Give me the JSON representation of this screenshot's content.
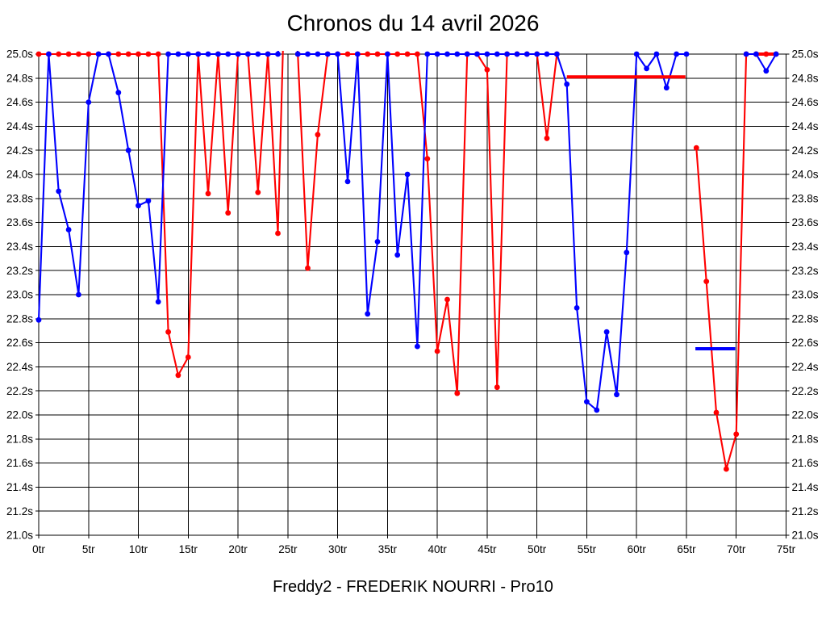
{
  "chart_data": {
    "type": "line",
    "title": "Chronos du 14 avril 2026",
    "subtitle": "Freddy2 - FREDERIK NOURRI - Pro10",
    "x_unit": "tr",
    "y_unit": "s",
    "xlim": [
      0,
      75
    ],
    "ylim": [
      21.0,
      25.0
    ],
    "y_step": 0.2,
    "x_tick_step": 5,
    "grid": true,
    "legend_position": "none",
    "clip_top": 25.0,
    "x_tick_labels": [
      "0tr",
      "5tr",
      "10tr",
      "15tr",
      "20tr",
      "25tr",
      "30tr",
      "35tr",
      "40tr",
      "45tr",
      "50tr",
      "55tr",
      "60tr",
      "65tr",
      "70tr",
      "75tr"
    ],
    "y_tick_labels": [
      "25.0s",
      "24.8s",
      "24.6s",
      "24.4s",
      "24.2s",
      "24.0s",
      "23.8s",
      "23.6s",
      "23.4s",
      "23.2s",
      "23.0s",
      "22.8s",
      "22.6s",
      "22.4s",
      "22.2s",
      "22.0s",
      "21.8s",
      "21.6s",
      "21.4s",
      "21.2s",
      "21.0s"
    ],
    "series": [
      {
        "name": "chrono-rouge",
        "color": "#ff0000",
        "values": [
          25,
          25,
          25,
          25,
          25,
          25,
          25,
          25,
          25,
          25,
          25,
          25,
          25,
          22.69,
          22.33,
          22.48,
          25,
          23.84,
          25,
          23.68,
          25,
          25,
          23.85,
          25,
          23.51,
          26.5,
          25,
          23.22,
          24.33,
          25,
          25,
          25,
          25,
          25,
          25,
          25,
          25,
          25,
          25,
          24.13,
          22.53,
          22.96,
          22.18,
          25,
          25,
          24.87,
          22.23,
          25,
          25,
          25,
          25,
          24.3,
          25,
          null,
          null,
          null,
          null,
          null,
          null,
          null,
          null,
          null,
          null,
          null,
          null,
          null,
          24.22,
          23.11,
          22.02,
          21.55,
          21.84,
          25,
          25,
          25,
          25
        ]
      },
      {
        "name": "chrono-bleu",
        "color": "#0000ff",
        "values": [
          22.79,
          25,
          23.86,
          23.54,
          23.0,
          24.6,
          25,
          25,
          24.68,
          24.2,
          23.74,
          23.78,
          22.94,
          25,
          25,
          25,
          25,
          25,
          25,
          25,
          25,
          25,
          25,
          25,
          25,
          26.0,
          25,
          25,
          25,
          25,
          25,
          23.94,
          25,
          22.84,
          23.44,
          25,
          23.33,
          24.0,
          22.57,
          25,
          25,
          25,
          25,
          25,
          25,
          25,
          25,
          25,
          25,
          25,
          25,
          25,
          25,
          24.75,
          22.89,
          22.11,
          22.04,
          22.69,
          22.17,
          23.35,
          25,
          24.88,
          25,
          24.72,
          25,
          25,
          null,
          null,
          null,
          null,
          null,
          25,
          25,
          24.86,
          25
        ]
      }
    ],
    "flat_segments": [
      {
        "color": "#ff0000",
        "x1": 53.0,
        "x2": 64.9,
        "y": 24.81
      },
      {
        "color": "#0000ff",
        "x1": 65.9,
        "x2": 69.9,
        "y": 22.55
      },
      {
        "color": "#ff0000",
        "x1": 71.8,
        "x2": 74.1,
        "y": 25.0
      }
    ]
  }
}
